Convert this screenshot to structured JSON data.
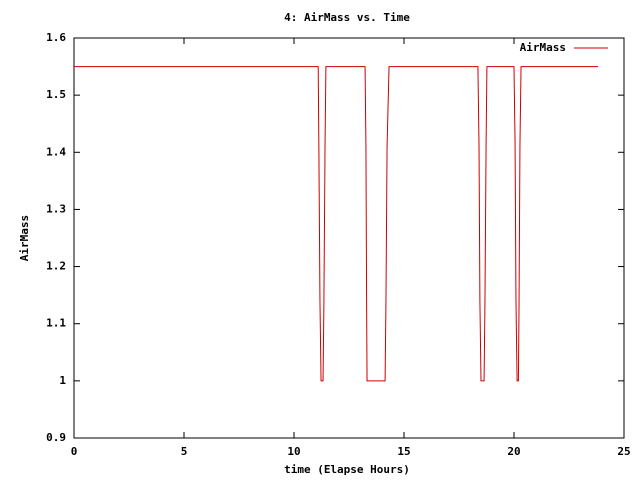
{
  "chart_data": {
    "type": "line",
    "title": "4: AirMass vs. Time",
    "x_label": "time (Elapse Hours)",
    "y_label": "AirMass",
    "x": [
      0,
      11.1,
      11.13,
      11.18,
      11.23,
      11.32,
      11.36,
      11.41,
      11.45,
      13.23,
      13.27,
      13.3,
      13.32,
      14.14,
      14.18,
      14.23,
      14.32,
      18.36,
      18.41,
      18.45,
      18.5,
      18.64,
      18.68,
      18.73,
      18.77,
      20.0,
      20.05,
      20.09,
      20.14,
      20.2,
      20.23,
      20.27,
      20.32,
      23.82
    ],
    "series": [
      {
        "name": "AirMass",
        "color": "#cc0000",
        "values": [
          1.55,
          1.55,
          1.41,
          1.14,
          1.0,
          1.0,
          1.14,
          1.41,
          1.55,
          1.55,
          1.41,
          1.14,
          1.0,
          1.0,
          1.14,
          1.41,
          1.55,
          1.55,
          1.41,
          1.14,
          1.0,
          1.0,
          1.14,
          1.41,
          1.55,
          1.55,
          1.41,
          1.14,
          1.0,
          1.0,
          1.14,
          1.41,
          1.55,
          1.55
        ]
      }
    ],
    "xlim": [
      0,
      25
    ],
    "xticks": [
      0,
      5,
      10,
      15,
      20,
      25
    ],
    "ylim": [
      0.9,
      1.6
    ],
    "yticks": [
      0.9,
      1,
      1.1,
      1.2,
      1.3,
      1.4,
      1.5,
      1.6
    ],
    "legend": "top-right",
    "grid": false
  }
}
